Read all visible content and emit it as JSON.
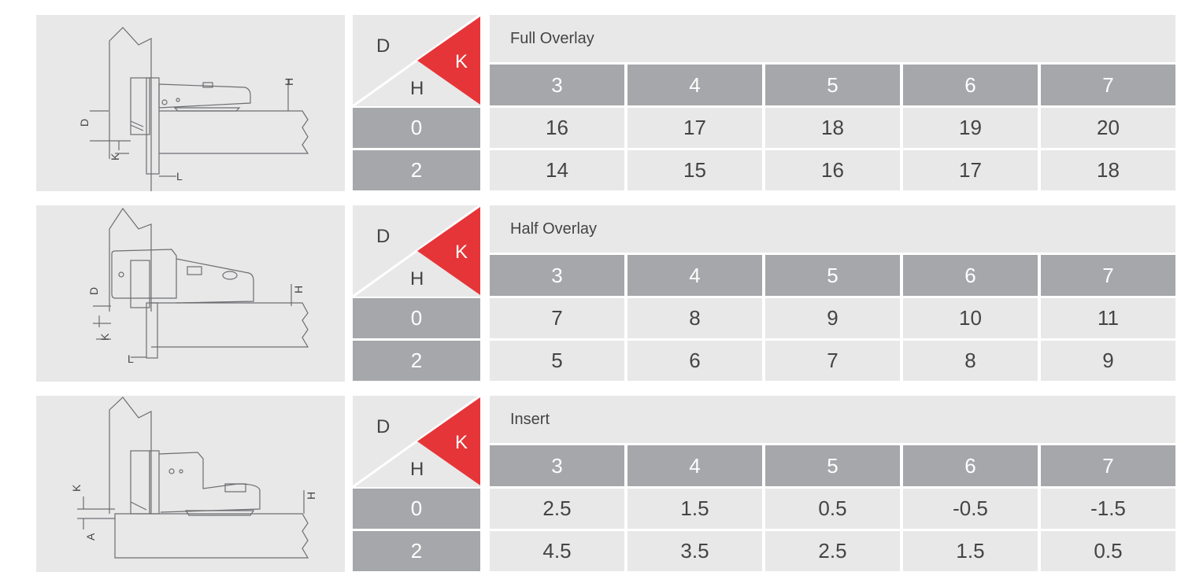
{
  "header_labels": {
    "d": "D",
    "h": "H",
    "k": "K"
  },
  "colors": {
    "accent": "#e63538",
    "header_gray": "#a6a7aa",
    "cell_gray": "#e8e8e9"
  },
  "tables": [
    {
      "title": "Full Overlay",
      "k_values": [
        "3",
        "4",
        "5",
        "6",
        "7"
      ],
      "rows": [
        {
          "h": "0",
          "values": [
            "16",
            "17",
            "18",
            "19",
            "20"
          ]
        },
        {
          "h": "2",
          "values": [
            "14",
            "15",
            "16",
            "17",
            "18"
          ]
        }
      ],
      "diagram_labels": [
        "D",
        "K",
        "L",
        "H"
      ]
    },
    {
      "title": "Half Overlay",
      "k_values": [
        "3",
        "4",
        "5",
        "6",
        "7"
      ],
      "rows": [
        {
          "h": "0",
          "values": [
            "7",
            "8",
            "9",
            "10",
            "11"
          ]
        },
        {
          "h": "2",
          "values": [
            "5",
            "6",
            "7",
            "8",
            "9"
          ]
        }
      ],
      "diagram_labels": [
        "D",
        "K",
        "L",
        "H"
      ]
    },
    {
      "title": "Insert",
      "k_values": [
        "3",
        "4",
        "5",
        "6",
        "7"
      ],
      "rows": [
        {
          "h": "0",
          "values": [
            "2.5",
            "1.5",
            "0.5",
            "-0.5",
            "-1.5"
          ]
        },
        {
          "h": "2",
          "values": [
            "4.5",
            "3.5",
            "2.5",
            "1.5",
            "0.5"
          ]
        }
      ],
      "diagram_labels": [
        "K",
        "A",
        "H"
      ]
    }
  ]
}
